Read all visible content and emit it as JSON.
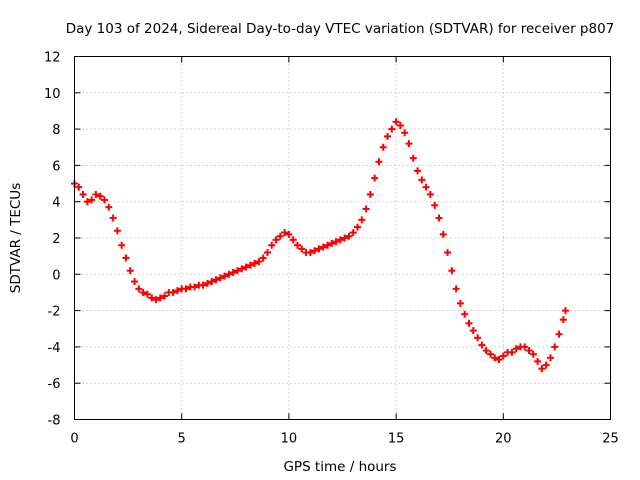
{
  "chart_data": {
    "type": "scatter",
    "title": "Day 103 of 2024, Sidereal Day-to-day VTEC variation (SDTVAR) for receiver p807",
    "xlabel": "GPS time / hours",
    "ylabel": "SDTVAR / TECUs",
    "xlim": [
      0,
      25
    ],
    "ylim": [
      -8,
      12
    ],
    "xticks": [
      0,
      5,
      10,
      15,
      20,
      25
    ],
    "yticks": [
      -8,
      -6,
      -4,
      -2,
      0,
      2,
      4,
      6,
      8,
      10,
      12
    ],
    "xtick_labels": [
      "0",
      "5",
      "10",
      "15",
      "20",
      "25"
    ],
    "ytick_labels": [
      "-8",
      "-6",
      "-4",
      "-2",
      "0",
      "2",
      "4",
      "6",
      "8",
      "10",
      "12"
    ],
    "grid": true,
    "marker": "+",
    "series": [
      {
        "name": "p807",
        "color": "#ff0000",
        "x": [
          0.0,
          0.2,
          0.4,
          0.6,
          0.8,
          1.0,
          1.2,
          1.4,
          1.6,
          1.8,
          2.0,
          2.2,
          2.4,
          2.6,
          2.8,
          3.0,
          3.2,
          3.4,
          3.6,
          3.8,
          4.0,
          4.2,
          4.4,
          4.6,
          4.8,
          5.0,
          5.2,
          5.4,
          5.6,
          5.8,
          6.0,
          6.2,
          6.4,
          6.6,
          6.8,
          7.0,
          7.2,
          7.4,
          7.6,
          7.8,
          8.0,
          8.2,
          8.4,
          8.6,
          8.8,
          9.0,
          9.2,
          9.4,
          9.6,
          9.8,
          10.0,
          10.2,
          10.4,
          10.6,
          10.8,
          11.0,
          11.2,
          11.4,
          11.6,
          11.8,
          12.0,
          12.2,
          12.4,
          12.6,
          12.8,
          13.0,
          13.2,
          13.4,
          13.6,
          13.8,
          14.0,
          14.2,
          14.4,
          14.6,
          14.8,
          15.0,
          15.2,
          15.4,
          15.6,
          15.8,
          16.0,
          16.2,
          16.4,
          16.6,
          16.8,
          17.0,
          17.2,
          17.4,
          17.6,
          17.8,
          18.0,
          18.2,
          18.4,
          18.6,
          18.8,
          19.0,
          19.2,
          19.4,
          19.6,
          19.8,
          20.0,
          20.2,
          20.4,
          20.6,
          20.8,
          21.0,
          21.2,
          21.4,
          21.6,
          21.8,
          22.0,
          22.2,
          22.4,
          22.6,
          22.8,
          22.9
        ],
        "y": [
          5.0,
          4.8,
          4.4,
          4.0,
          4.1,
          4.4,
          4.3,
          4.1,
          3.7,
          3.1,
          2.4,
          1.6,
          0.9,
          0.2,
          -0.4,
          -0.8,
          -1.0,
          -1.1,
          -1.3,
          -1.4,
          -1.3,
          -1.2,
          -1.0,
          -1.0,
          -0.9,
          -0.8,
          -0.8,
          -0.7,
          -0.7,
          -0.6,
          -0.6,
          -0.5,
          -0.4,
          -0.3,
          -0.2,
          -0.1,
          0.0,
          0.1,
          0.2,
          0.3,
          0.4,
          0.5,
          0.6,
          0.7,
          0.9,
          1.2,
          1.6,
          1.9,
          2.1,
          2.3,
          2.2,
          1.9,
          1.6,
          1.4,
          1.2,
          1.2,
          1.3,
          1.4,
          1.5,
          1.6,
          1.7,
          1.8,
          1.9,
          2.0,
          2.1,
          2.3,
          2.6,
          3.0,
          3.6,
          4.4,
          5.3,
          6.2,
          7.0,
          7.6,
          8.0,
          8.4,
          8.2,
          7.8,
          7.2,
          6.4,
          5.7,
          5.2,
          4.8,
          4.4,
          3.8,
          3.1,
          2.2,
          1.2,
          0.2,
          -0.8,
          -1.6,
          -2.2,
          -2.7,
          -3.1,
          -3.5,
          -3.9,
          -4.2,
          -4.4,
          -4.6,
          -4.7,
          -4.5,
          -4.3,
          -4.3,
          -4.1,
          -4.0,
          -4.0,
          -4.2,
          -4.4,
          -4.8,
          -5.2,
          -5.0,
          -4.6,
          -4.0,
          -3.3,
          -2.5,
          -2.0
        ]
      }
    ]
  }
}
